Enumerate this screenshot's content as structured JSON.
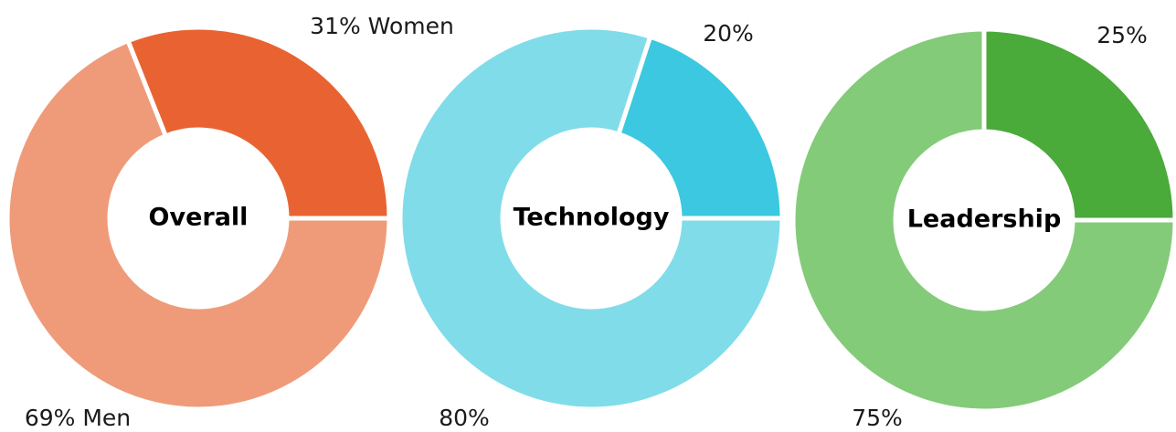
{
  "chart_data": [
    {
      "type": "donut",
      "title": "Overall",
      "categories": [
        "Women",
        "Men"
      ],
      "values": [
        31,
        69
      ],
      "labels": [
        "31% Women",
        "69% Men"
      ],
      "colors": [
        "#e96332",
        "#ef9b7a"
      ]
    },
    {
      "type": "donut",
      "title": "Technology",
      "categories": [
        "Women",
        "Men"
      ],
      "values": [
        20,
        80
      ],
      "labels": [
        "20%",
        "80%"
      ],
      "colors": [
        "#3cc8e0",
        "#81dcea"
      ]
    },
    {
      "type": "donut",
      "title": "Leadership",
      "categories": [
        "Women",
        "Men"
      ],
      "values": [
        25,
        75
      ],
      "labels": [
        "25%",
        "75%"
      ],
      "colors": [
        "#4aaa3a",
        "#84cb79"
      ]
    }
  ]
}
